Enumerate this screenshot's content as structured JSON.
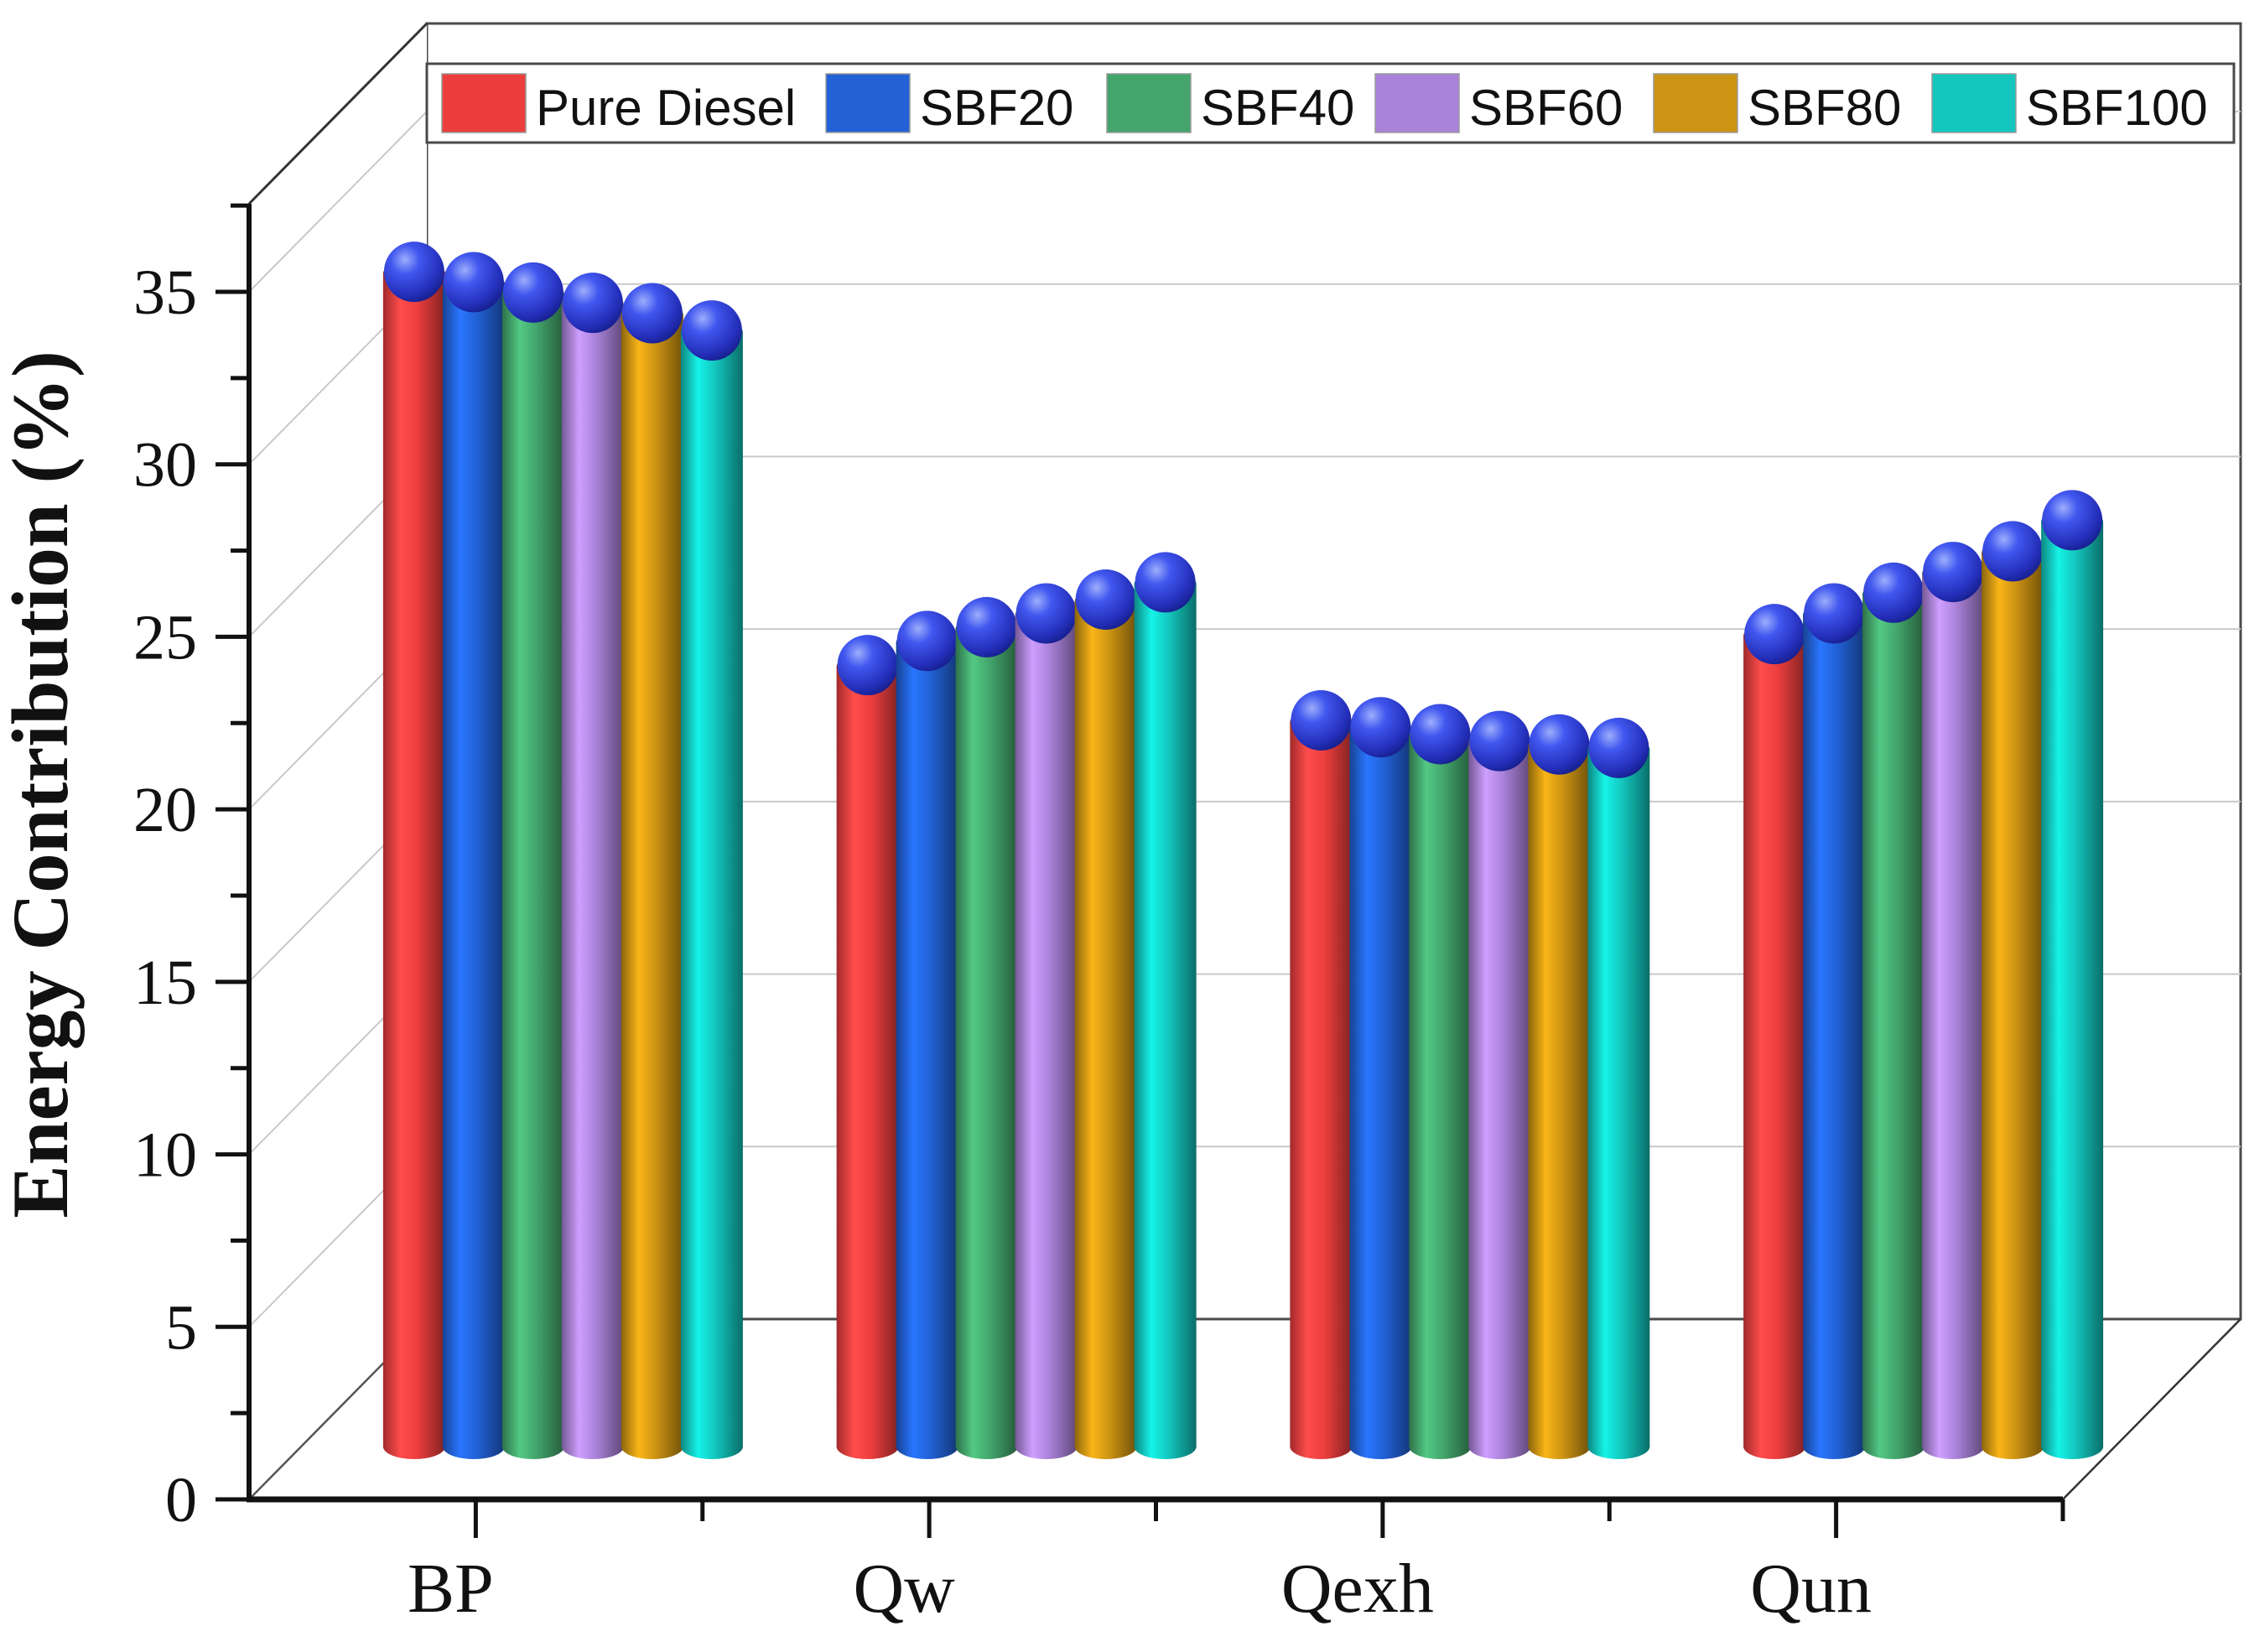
{
  "figure": {
    "background_color": "#ffffff",
    "frame_color": "#4a4a4a",
    "axis_color": "#111111",
    "grid_color": "#c9c9c9",
    "wall_fill": "#ffffff"
  },
  "chart_data": {
    "type": "bar",
    "subtype": "3d-cylinder-with-sphere-caps",
    "title": "",
    "ylabel": "Energy Contribution (%)",
    "xlabel": "",
    "categories": [
      "BP",
      "Qw",
      "Qexh",
      "Qun"
    ],
    "series": [
      {
        "name": "Pure Diesel",
        "color": "#ed3e3e",
        "values": [
          34.0,
          22.6,
          21.0,
          23.5
        ]
      },
      {
        "name": "SBF20",
        "color": "#2261d6",
        "values": [
          33.7,
          23.3,
          20.8,
          24.1
        ]
      },
      {
        "name": "SBF40",
        "color": "#43a56c",
        "values": [
          33.4,
          23.7,
          20.6,
          24.7
        ]
      },
      {
        "name": "SBF60",
        "color": "#aa82da",
        "values": [
          33.1,
          24.1,
          20.4,
          25.3
        ]
      },
      {
        "name": "SBF80",
        "color": "#cd9413",
        "values": [
          32.8,
          24.5,
          20.3,
          25.9
        ]
      },
      {
        "name": "SBF100",
        "color": "#13c7be",
        "values": [
          32.3,
          25.0,
          20.2,
          26.8
        ]
      }
    ],
    "ylim": [
      0,
      37.5
    ],
    "y_major_ticks": [
      0,
      5,
      10,
      15,
      20,
      25,
      30,
      35
    ],
    "y_minor_step": 2.5,
    "grid": true,
    "legend_position": "top-inside",
    "marker": {
      "shape": "sphere",
      "color": "#2733cc"
    }
  }
}
